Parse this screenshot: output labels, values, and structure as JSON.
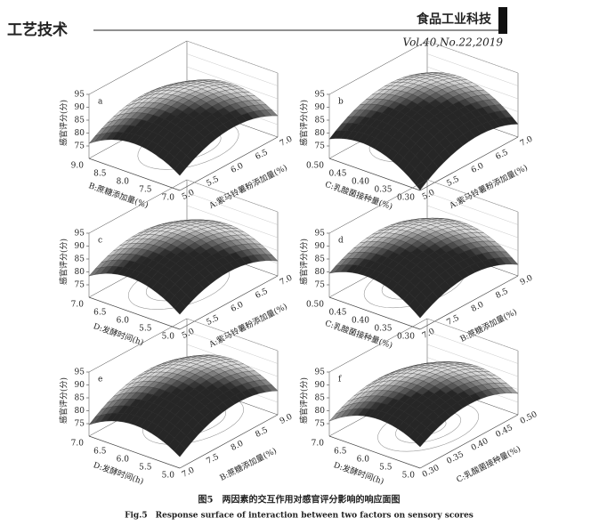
{
  "header": {
    "section": "工艺技术",
    "journal": "食品工业科技",
    "volume": "Vol.40,No.22,2019"
  },
  "figure": {
    "panels": [
      {
        "label": "a",
        "z_label": "感官评分(分)",
        "z_ticks": [
          "75",
          "80",
          "85",
          "90",
          "95"
        ],
        "left_label": "B:蔗糖添加量(%)",
        "left_ticks": [
          "9.0",
          "8.5",
          "8.0",
          "7.5",
          "7.0"
        ],
        "right_label": "A:紫马铃薯粉添加量(%)",
        "right_ticks": [
          "5.0",
          "5.5",
          "6.0",
          "6.5",
          "7.0"
        ]
      },
      {
        "label": "b",
        "z_label": "感官评分(分)",
        "z_ticks": [
          "75",
          "80",
          "85",
          "90",
          "95"
        ],
        "left_label": "C:乳酸菌接种量(%)",
        "left_ticks": [
          "0.50",
          "0.45",
          "0.40",
          "0.35",
          "0.30"
        ],
        "right_label": "A:紫马铃薯粉添加量(%)",
        "right_ticks": [
          "5.0",
          "5.5",
          "6.0",
          "6.5",
          "7.0"
        ]
      },
      {
        "label": "c",
        "z_label": "感官评分(分)",
        "z_ticks": [
          "75",
          "80",
          "85",
          "90",
          "95"
        ],
        "left_label": "D:发酵时间(h)",
        "left_ticks": [
          "7.0",
          "6.5",
          "6.0",
          "5.5",
          "5.0"
        ],
        "right_label": "A:紫马铃薯粉添加量(%)",
        "right_ticks": [
          "5.0",
          "5.5",
          "6.0",
          "6.5",
          "7.0"
        ]
      },
      {
        "label": "d",
        "z_label": "感官评分(分)",
        "z_ticks": [
          "75",
          "80",
          "85",
          "90",
          "95"
        ],
        "left_label": "C:乳酸菌接种量(%)",
        "left_ticks": [
          "0.50",
          "0.45",
          "0.40",
          "0.35",
          "0.30"
        ],
        "right_label": "B:蔗糖添加量(%)",
        "right_ticks": [
          "7.0",
          "7.5",
          "8.0",
          "8.5",
          "9.0"
        ]
      },
      {
        "label": "e",
        "z_label": "感官评分(分)",
        "z_ticks": [
          "75",
          "80",
          "85",
          "90",
          "95"
        ],
        "left_label": "D:发酵时间(h)",
        "left_ticks": [
          "7.0",
          "6.5",
          "6.0",
          "5.5",
          "5.0"
        ],
        "right_label": "B:蔗糖添加量(%)",
        "right_ticks": [
          "7.0",
          "7.5",
          "8.0",
          "8.5",
          "9.0"
        ]
      },
      {
        "label": "f",
        "z_label": "感官评分(分)",
        "z_ticks": [
          "75",
          "80",
          "85",
          "90",
          "95"
        ],
        "left_label": "D:发酵时间(h)",
        "left_ticks": [
          "7.0",
          "6.5",
          "6.0",
          "5.5",
          "5.0"
        ],
        "right_label": "C:乳酸菌接种量(%)",
        "right_ticks": [
          "0.30",
          "0.35",
          "0.40",
          "0.45",
          "0.50"
        ]
      }
    ],
    "caption_cn": "图5　两因素的交互作用对感官评分影响的响应面图",
    "caption_en": "Fig.5　Response surface of interaction between two factors on sensory scores"
  }
}
